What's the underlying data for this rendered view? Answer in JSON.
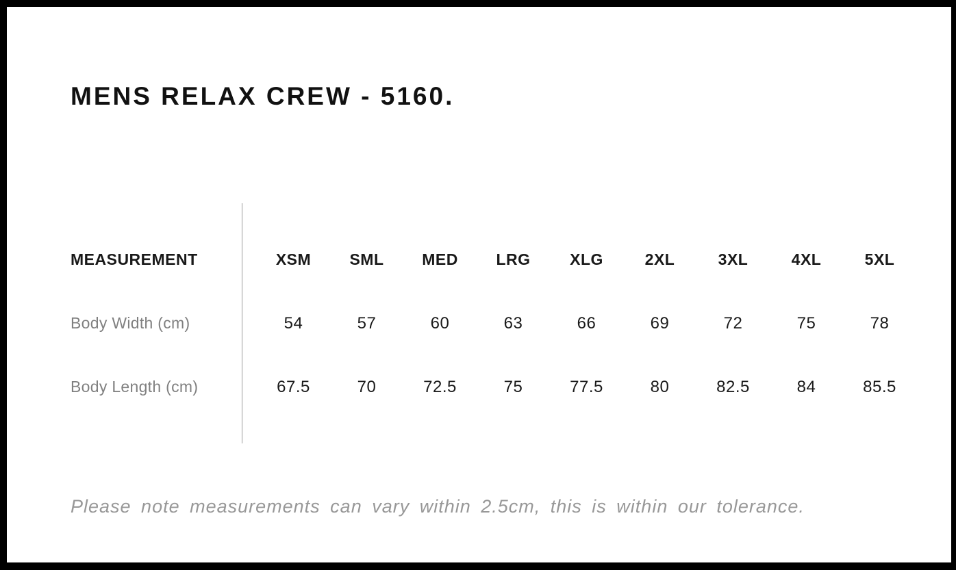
{
  "title": "MENS RELAX CREW - 5160.",
  "table": {
    "header_label": "MEASUREMENT",
    "sizes": [
      "XSM",
      "SML",
      "MED",
      "LRG",
      "XLG",
      "2XL",
      "3XL",
      "4XL",
      "5XL"
    ],
    "rows": [
      {
        "label": "Body Width (cm)",
        "values": [
          "54",
          "57",
          "60",
          "63",
          "66",
          "69",
          "72",
          "75",
          "78"
        ]
      },
      {
        "label": "Body Length (cm)",
        "values": [
          "67.5",
          "70",
          "72.5",
          "75",
          "77.5",
          "80",
          "82.5",
          "84",
          "85.5"
        ]
      }
    ]
  },
  "note": "Please note measurements can vary within 2.5cm, this is within our tolerance.",
  "colors": {
    "frame": "#000000",
    "heading_text": "#111111",
    "value_text": "#1a1a1a",
    "label_gray": "#808080",
    "note_gray": "#989898",
    "divider": "#999999"
  }
}
